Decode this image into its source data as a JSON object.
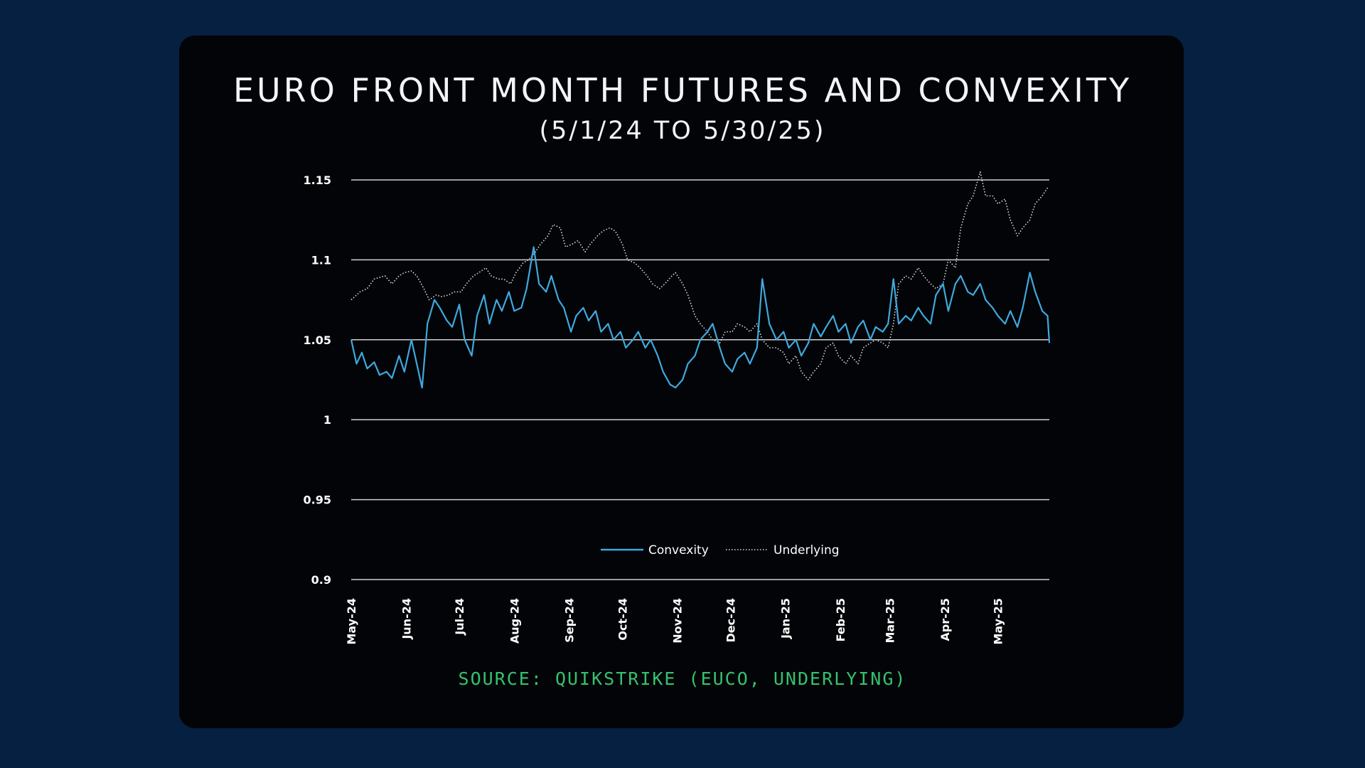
{
  "title": "EURO FRONT MONTH FUTURES AND CONVEXITY",
  "subtitle": "(5/1/24 TO 5/30/25)",
  "source": "SOURCE: QUIKSTRIKE (EUCO, UNDERLYING)",
  "colors": {
    "background": "#062041",
    "card": "#020408",
    "convexity": "#3fa9de",
    "underlying": "#dddddd",
    "grid": "#cfcfcf",
    "source": "#35c26d"
  },
  "chart_data": {
    "type": "line",
    "title": "EURO FRONT MONTH FUTURES AND CONVEXITY",
    "subtitle": "(5/1/24 TO 5/30/25)",
    "xlabel": "",
    "ylabel": "",
    "ylim": [
      0.9,
      1.15
    ],
    "yticks": [
      0.9,
      0.95,
      1,
      1.05,
      1.1,
      1.15
    ],
    "ytick_labels": [
      "0.9",
      "0.95",
      "1",
      "1.05",
      "1.1",
      "1.15"
    ],
    "xlim": [
      "2024-05-01",
      "2025-05-30"
    ],
    "xtick_labels": [
      "May-24",
      "Jun-24",
      "Jul-24",
      "Aug-24",
      "Sep-24",
      "Oct-24",
      "Nov-24",
      "Dec-24",
      "Jan-25",
      "Feb-25",
      "Mar-25",
      "Apr-25",
      "May-25"
    ],
    "xtick_dates": [
      "2024-05-01",
      "2024-06-01",
      "2024-07-01",
      "2024-08-01",
      "2024-09-01",
      "2024-10-01",
      "2024-11-01",
      "2024-12-01",
      "2025-01-01",
      "2025-02-01",
      "2025-03-01",
      "2025-04-01",
      "2025-05-01"
    ],
    "grid": true,
    "legend_position": "bottom-center",
    "series": [
      {
        "name": "Convexity",
        "style": "solid",
        "points": [
          [
            "2024-05-01",
            1.05
          ],
          [
            "2024-05-04",
            1.035
          ],
          [
            "2024-05-07",
            1.042
          ],
          [
            "2024-05-10",
            1.032
          ],
          [
            "2024-05-14",
            1.036
          ],
          [
            "2024-05-17",
            1.028
          ],
          [
            "2024-05-21",
            1.03
          ],
          [
            "2024-05-24",
            1.026
          ],
          [
            "2024-05-28",
            1.04
          ],
          [
            "2024-05-31",
            1.03
          ],
          [
            "2024-06-04",
            1.05
          ],
          [
            "2024-06-07",
            1.035
          ],
          [
            "2024-06-10",
            1.02
          ],
          [
            "2024-06-13",
            1.06
          ],
          [
            "2024-06-17",
            1.075
          ],
          [
            "2024-06-20",
            1.07
          ],
          [
            "2024-06-24",
            1.062
          ],
          [
            "2024-06-27",
            1.058
          ],
          [
            "2024-07-01",
            1.072
          ],
          [
            "2024-07-04",
            1.05
          ],
          [
            "2024-07-08",
            1.04
          ],
          [
            "2024-07-11",
            1.065
          ],
          [
            "2024-07-15",
            1.078
          ],
          [
            "2024-07-18",
            1.06
          ],
          [
            "2024-07-22",
            1.075
          ],
          [
            "2024-07-25",
            1.068
          ],
          [
            "2024-07-29",
            1.08
          ],
          [
            "2024-08-01",
            1.068
          ],
          [
            "2024-08-05",
            1.07
          ],
          [
            "2024-08-08",
            1.082
          ],
          [
            "2024-08-12",
            1.108
          ],
          [
            "2024-08-15",
            1.085
          ],
          [
            "2024-08-19",
            1.08
          ],
          [
            "2024-08-22",
            1.09
          ],
          [
            "2024-08-26",
            1.075
          ],
          [
            "2024-08-29",
            1.07
          ],
          [
            "2024-09-02",
            1.055
          ],
          [
            "2024-09-05",
            1.065
          ],
          [
            "2024-09-09",
            1.07
          ],
          [
            "2024-09-12",
            1.062
          ],
          [
            "2024-09-16",
            1.068
          ],
          [
            "2024-09-19",
            1.055
          ],
          [
            "2024-09-23",
            1.06
          ],
          [
            "2024-09-26",
            1.05
          ],
          [
            "2024-09-30",
            1.055
          ],
          [
            "2024-10-03",
            1.045
          ],
          [
            "2024-10-07",
            1.05
          ],
          [
            "2024-10-10",
            1.055
          ],
          [
            "2024-10-14",
            1.045
          ],
          [
            "2024-10-17",
            1.05
          ],
          [
            "2024-10-21",
            1.04
          ],
          [
            "2024-10-24",
            1.03
          ],
          [
            "2024-10-28",
            1.022
          ],
          [
            "2024-10-31",
            1.02
          ],
          [
            "2024-11-04",
            1.025
          ],
          [
            "2024-11-07",
            1.035
          ],
          [
            "2024-11-11",
            1.04
          ],
          [
            "2024-11-14",
            1.05
          ],
          [
            "2024-11-18",
            1.055
          ],
          [
            "2024-11-21",
            1.06
          ],
          [
            "2024-11-25",
            1.045
          ],
          [
            "2024-11-28",
            1.035
          ],
          [
            "2024-12-02",
            1.03
          ],
          [
            "2024-12-05",
            1.038
          ],
          [
            "2024-12-09",
            1.042
          ],
          [
            "2024-12-12",
            1.035
          ],
          [
            "2024-12-16",
            1.045
          ],
          [
            "2024-12-19",
            1.088
          ],
          [
            "2024-12-23",
            1.06
          ],
          [
            "2024-12-27",
            1.05
          ],
          [
            "2024-12-31",
            1.055
          ],
          [
            "2025-01-03",
            1.045
          ],
          [
            "2025-01-07",
            1.05
          ],
          [
            "2025-01-10",
            1.04
          ],
          [
            "2025-01-14",
            1.048
          ],
          [
            "2025-01-17",
            1.06
          ],
          [
            "2025-01-21",
            1.052
          ],
          [
            "2025-01-24",
            1.058
          ],
          [
            "2025-01-28",
            1.065
          ],
          [
            "2025-01-31",
            1.055
          ],
          [
            "2025-02-04",
            1.06
          ],
          [
            "2025-02-07",
            1.048
          ],
          [
            "2025-02-11",
            1.058
          ],
          [
            "2025-02-14",
            1.062
          ],
          [
            "2025-02-18",
            1.05
          ],
          [
            "2025-02-21",
            1.058
          ],
          [
            "2025-02-25",
            1.055
          ],
          [
            "2025-02-28",
            1.06
          ],
          [
            "2025-03-03",
            1.088
          ],
          [
            "2025-03-06",
            1.06
          ],
          [
            "2025-03-10",
            1.065
          ],
          [
            "2025-03-13",
            1.062
          ],
          [
            "2025-03-17",
            1.07
          ],
          [
            "2025-03-20",
            1.065
          ],
          [
            "2025-03-24",
            1.06
          ],
          [
            "2025-03-27",
            1.078
          ],
          [
            "2025-03-31",
            1.085
          ],
          [
            "2025-04-03",
            1.068
          ],
          [
            "2025-04-07",
            1.085
          ],
          [
            "2025-04-10",
            1.09
          ],
          [
            "2025-04-14",
            1.08
          ],
          [
            "2025-04-17",
            1.078
          ],
          [
            "2025-04-21",
            1.085
          ],
          [
            "2025-04-24",
            1.075
          ],
          [
            "2025-04-28",
            1.07
          ],
          [
            "2025-05-01",
            1.065
          ],
          [
            "2025-05-05",
            1.06
          ],
          [
            "2025-05-08",
            1.068
          ],
          [
            "2025-05-12",
            1.058
          ],
          [
            "2025-05-15",
            1.07
          ],
          [
            "2025-05-19",
            1.092
          ],
          [
            "2025-05-22",
            1.08
          ],
          [
            "2025-05-26",
            1.068
          ],
          [
            "2025-05-29",
            1.065
          ],
          [
            "2025-05-30",
            1.048
          ]
        ]
      },
      {
        "name": "Underlying",
        "style": "dotted",
        "points": [
          [
            "2024-05-01",
            1.075
          ],
          [
            "2024-05-06",
            1.08
          ],
          [
            "2024-05-10",
            1.082
          ],
          [
            "2024-05-14",
            1.088
          ],
          [
            "2024-05-20",
            1.09
          ],
          [
            "2024-05-24",
            1.085
          ],
          [
            "2024-05-28",
            1.09
          ],
          [
            "2024-05-31",
            1.092
          ],
          [
            "2024-06-04",
            1.093
          ],
          [
            "2024-06-07",
            1.09
          ],
          [
            "2024-06-11",
            1.082
          ],
          [
            "2024-06-14",
            1.075
          ],
          [
            "2024-06-18",
            1.078
          ],
          [
            "2024-06-21",
            1.077
          ],
          [
            "2024-06-25",
            1.078
          ],
          [
            "2024-06-28",
            1.08
          ],
          [
            "2024-07-02",
            1.08
          ],
          [
            "2024-07-05",
            1.085
          ],
          [
            "2024-07-09",
            1.09
          ],
          [
            "2024-07-12",
            1.092
          ],
          [
            "2024-07-16",
            1.095
          ],
          [
            "2024-07-19",
            1.09
          ],
          [
            "2024-07-23",
            1.088
          ],
          [
            "2024-07-26",
            1.088
          ],
          [
            "2024-07-30",
            1.085
          ],
          [
            "2024-08-02",
            1.092
          ],
          [
            "2024-08-06",
            1.098
          ],
          [
            "2024-08-09",
            1.1
          ],
          [
            "2024-08-13",
            1.105
          ],
          [
            "2024-08-16",
            1.11
          ],
          [
            "2024-08-20",
            1.115
          ],
          [
            "2024-08-23",
            1.122
          ],
          [
            "2024-08-27",
            1.12
          ],
          [
            "2024-08-30",
            1.108
          ],
          [
            "2024-09-03",
            1.11
          ],
          [
            "2024-09-06",
            1.112
          ],
          [
            "2024-09-10",
            1.105
          ],
          [
            "2024-09-13",
            1.11
          ],
          [
            "2024-09-17",
            1.115
          ],
          [
            "2024-09-20",
            1.118
          ],
          [
            "2024-09-24",
            1.12
          ],
          [
            "2024-09-27",
            1.118
          ],
          [
            "2024-10-01",
            1.11
          ],
          [
            "2024-10-04",
            1.1
          ],
          [
            "2024-10-08",
            1.098
          ],
          [
            "2024-10-11",
            1.095
          ],
          [
            "2024-10-15",
            1.09
          ],
          [
            "2024-10-18",
            1.085
          ],
          [
            "2024-10-22",
            1.082
          ],
          [
            "2024-10-25",
            1.085
          ],
          [
            "2024-10-29",
            1.09
          ],
          [
            "2024-10-31",
            1.092
          ],
          [
            "2024-11-04",
            1.085
          ],
          [
            "2024-11-07",
            1.078
          ],
          [
            "2024-11-11",
            1.065
          ],
          [
            "2024-11-14",
            1.06
          ],
          [
            "2024-11-18",
            1.055
          ],
          [
            "2024-11-21",
            1.05
          ],
          [
            "2024-11-25",
            1.048
          ],
          [
            "2024-11-28",
            1.055
          ],
          [
            "2024-12-02",
            1.055
          ],
          [
            "2024-12-05",
            1.06
          ],
          [
            "2024-12-09",
            1.058
          ],
          [
            "2024-12-12",
            1.055
          ],
          [
            "2024-12-16",
            1.06
          ],
          [
            "2024-12-19",
            1.05
          ],
          [
            "2024-12-23",
            1.045
          ],
          [
            "2024-12-27",
            1.045
          ],
          [
            "2024-12-31",
            1.042
          ],
          [
            "2025-01-03",
            1.035
          ],
          [
            "2025-01-07",
            1.04
          ],
          [
            "2025-01-10",
            1.03
          ],
          [
            "2025-01-14",
            1.025
          ],
          [
            "2025-01-17",
            1.03
          ],
          [
            "2025-01-21",
            1.035
          ],
          [
            "2025-01-24",
            1.045
          ],
          [
            "2025-01-28",
            1.048
          ],
          [
            "2025-01-31",
            1.04
          ],
          [
            "2025-02-04",
            1.035
          ],
          [
            "2025-02-07",
            1.04
          ],
          [
            "2025-02-11",
            1.035
          ],
          [
            "2025-02-14",
            1.045
          ],
          [
            "2025-02-18",
            1.048
          ],
          [
            "2025-02-21",
            1.05
          ],
          [
            "2025-02-25",
            1.048
          ],
          [
            "2025-02-28",
            1.045
          ],
          [
            "2025-03-03",
            1.06
          ],
          [
            "2025-03-06",
            1.085
          ],
          [
            "2025-03-10",
            1.09
          ],
          [
            "2025-03-13",
            1.088
          ],
          [
            "2025-03-17",
            1.095
          ],
          [
            "2025-03-20",
            1.09
          ],
          [
            "2025-03-24",
            1.085
          ],
          [
            "2025-03-27",
            1.082
          ],
          [
            "2025-03-31",
            1.085
          ],
          [
            "2025-04-03",
            1.1
          ],
          [
            "2025-04-07",
            1.095
          ],
          [
            "2025-04-10",
            1.12
          ],
          [
            "2025-04-14",
            1.135
          ],
          [
            "2025-04-17",
            1.14
          ],
          [
            "2025-04-21",
            1.155
          ],
          [
            "2025-04-24",
            1.14
          ],
          [
            "2025-04-28",
            1.14
          ],
          [
            "2025-05-01",
            1.135
          ],
          [
            "2025-05-05",
            1.138
          ],
          [
            "2025-05-08",
            1.125
          ],
          [
            "2025-05-12",
            1.115
          ],
          [
            "2025-05-15",
            1.12
          ],
          [
            "2025-05-19",
            1.125
          ],
          [
            "2025-05-22",
            1.135
          ],
          [
            "2025-05-26",
            1.14
          ],
          [
            "2025-05-29",
            1.145
          ],
          [
            "2025-05-30",
            1.145
          ]
        ]
      }
    ]
  }
}
